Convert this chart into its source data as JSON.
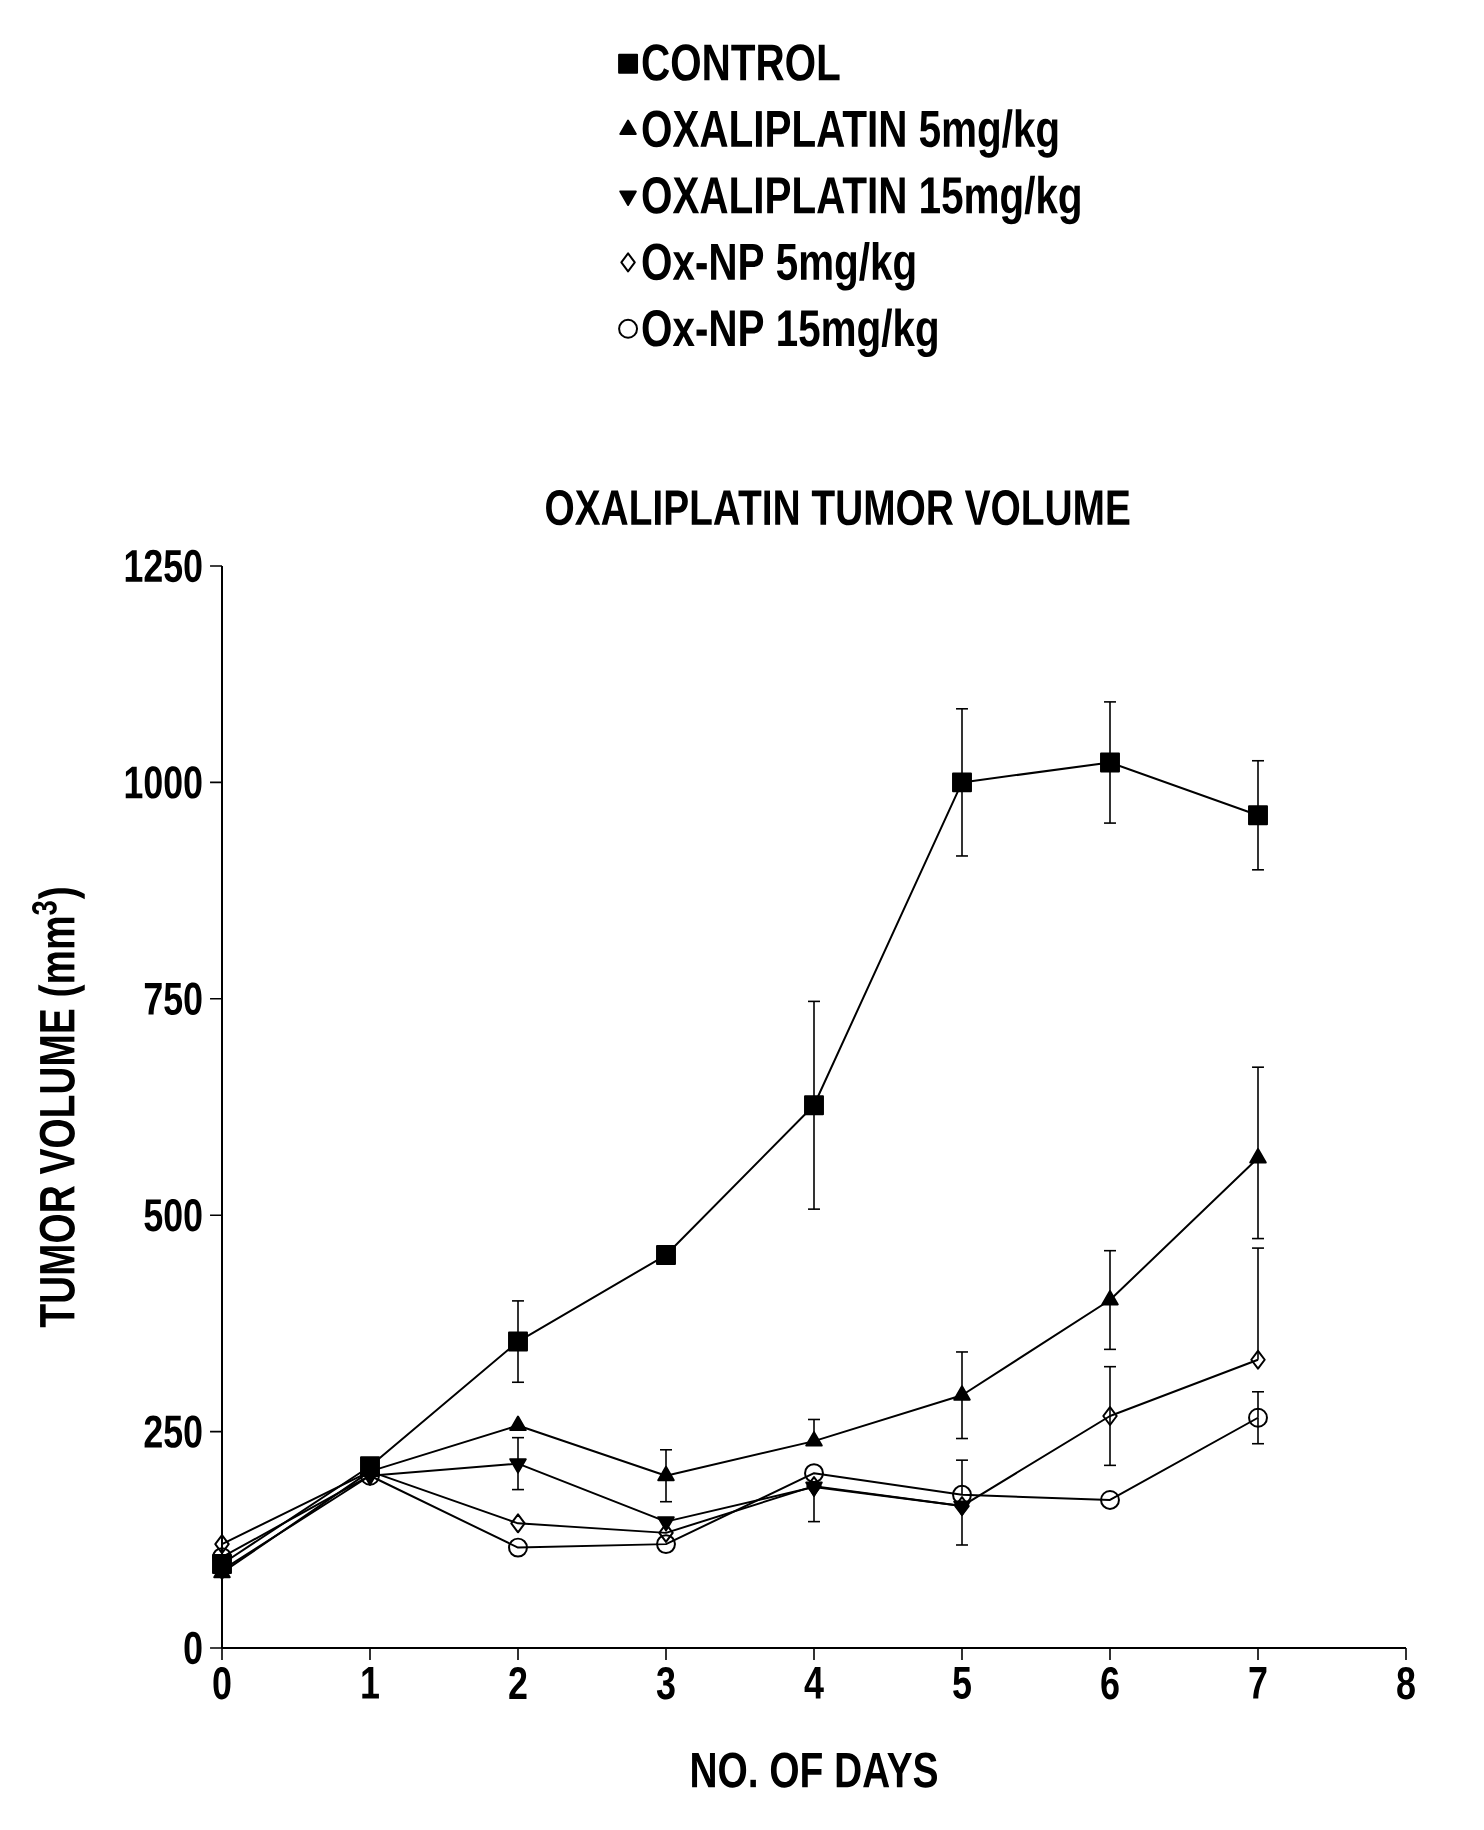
{
  "chart_data": {
    "type": "line",
    "title": "OXALIPLATIN TUMOR VOLUME",
    "xlabel": "NO. OF DAYS",
    "ylabel": "TUMOR VOLUME (mm$^{3}$)",
    "x": [
      0,
      1,
      2,
      3,
      4,
      5,
      6,
      7
    ],
    "xlim": [
      0,
      8
    ],
    "xticks": [
      0,
      1,
      2,
      3,
      4,
      5,
      6,
      7,
      8
    ],
    "ylim": [
      0,
      1250
    ],
    "yticks": [
      0,
      250,
      500,
      750,
      1000,
      1250
    ],
    "legend": "top",
    "grid": false,
    "line_style": "solid",
    "series": [
      {
        "name": "CONTROL",
        "color": "#000000",
        "marker": "square",
        "values": [
          97,
          210,
          354,
          454,
          627,
          1000,
          1023,
          962
        ],
        "errors": [
          null,
          null,
          47,
          null,
          120,
          85,
          70,
          63
        ]
      },
      {
        "name": "OXALIPLATIN 5mg/kg",
        "color": "#000000",
        "marker": "triangle",
        "values": [
          87,
          204,
          257,
          199,
          239,
          292,
          402,
          566
        ],
        "errors": [
          null,
          null,
          null,
          30,
          [
            239,
            264
          ],
          50,
          57,
          [
            473,
            671
          ]
        ]
      },
      {
        "name": "OXALIPLATIN 15mg/kg",
        "color": "#000000",
        "marker": "triangle-down",
        "values": [
          90,
          199,
          213,
          146,
          186,
          164,
          null,
          null
        ],
        "errors": [
          null,
          null,
          30,
          null,
          [
            146,
            186
          ],
          [
            119,
            164
          ],
          null,
          null
        ]
      },
      {
        "name": "Ox-NP 5mg/kg",
        "color": "#000000",
        "marker": "diamond",
        "values": [
          120,
          204,
          144,
          133,
          187,
          164,
          268,
          333
        ],
        "errors": [
          null,
          null,
          null,
          null,
          null,
          null,
          57,
          [
            333,
            462
          ]
        ]
      },
      {
        "name": "Ox-NP 15mg/kg",
        "color": "#000000",
        "marker": "circle",
        "values": [
          105,
          199,
          116,
          120,
          202,
          177,
          171,
          266
        ],
        "errors": [
          null,
          null,
          null,
          null,
          null,
          [
            177,
            217
          ],
          null,
          [
            236,
            296
          ]
        ]
      }
    ]
  }
}
